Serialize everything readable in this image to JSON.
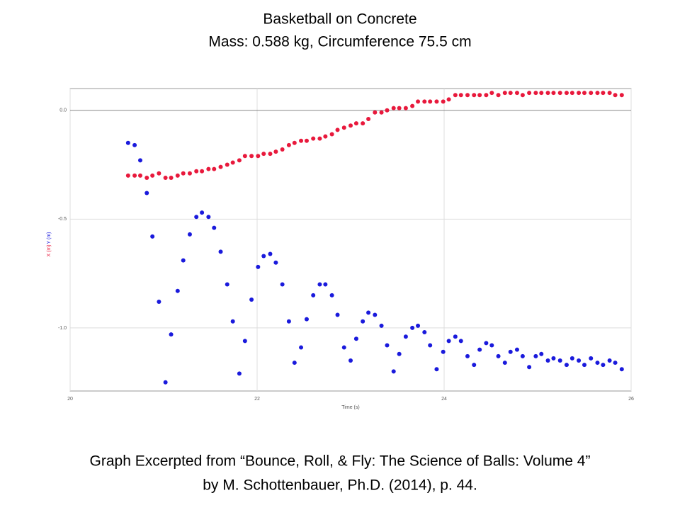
{
  "chart_data": {
    "type": "scatter",
    "title": "Basketball on Concrete",
    "subtitle": "Mass: 0.588 kg, Circumference  75.5 cm",
    "caption": [
      "Graph Excerpted from “Bounce, Roll, & Fly: The Science of  Balls: Volume 4”",
      "by M. Schottenbauer, Ph.D. (2014), p. 44."
    ],
    "x_label": "Time (s)",
    "xlim": [
      20,
      26
    ],
    "xticks": [
      20,
      22,
      24,
      26
    ],
    "ylim": [
      -1.29,
      0.1
    ],
    "yticks": [
      {
        "value": 0,
        "label": "0.0"
      },
      {
        "value": -0.5,
        "label": "-0.5"
      },
      {
        "value": -1,
        "label": "-1.0"
      }
    ],
    "grid": true,
    "x": [
      20.62,
      20.69,
      20.75,
      20.82,
      20.88,
      20.95,
      21.02,
      21.08,
      21.15,
      21.21,
      21.28,
      21.35,
      21.41,
      21.48,
      21.54,
      21.61,
      21.68,
      21.74,
      21.81,
      21.87,
      21.94,
      22.01,
      22.07,
      22.14,
      22.2,
      22.27,
      22.34,
      22.4,
      22.47,
      22.53,
      22.6,
      22.67,
      22.73,
      22.8,
      22.86,
      22.93,
      23.0,
      23.06,
      23.13,
      23.19,
      23.26,
      23.33,
      23.39,
      23.46,
      23.52,
      23.59,
      23.66,
      23.72,
      23.79,
      23.85,
      23.92,
      23.99,
      24.05,
      24.12,
      24.18,
      24.25,
      24.32,
      24.38,
      24.45,
      24.51,
      24.58,
      24.65,
      24.71,
      24.78,
      24.84,
      24.91,
      24.98,
      25.04,
      25.11,
      25.17,
      25.24,
      25.31,
      25.37,
      25.44,
      25.5,
      25.57,
      25.64,
      25.7,
      25.77,
      25.83,
      25.9
    ],
    "series": [
      {
        "name": "X (m)",
        "color": "#e8193c",
        "values": [
          -0.3,
          -0.3,
          -0.3,
          -0.31,
          -0.3,
          -0.29,
          -0.31,
          -0.31,
          -0.3,
          -0.29,
          -0.29,
          -0.28,
          -0.28,
          -0.27,
          -0.27,
          -0.26,
          -0.25,
          -0.24,
          -0.23,
          -0.21,
          -0.21,
          -0.21,
          -0.2,
          -0.2,
          -0.19,
          -0.18,
          -0.16,
          -0.15,
          -0.14,
          -0.14,
          -0.13,
          -0.13,
          -0.12,
          -0.11,
          -0.09,
          -0.08,
          -0.07,
          -0.06,
          -0.06,
          -0.04,
          -0.01,
          -0.01,
          0.0,
          0.01,
          0.01,
          0.01,
          0.02,
          0.04,
          0.04,
          0.04,
          0.04,
          0.04,
          0.05,
          0.07,
          0.07,
          0.07,
          0.07,
          0.07,
          0.07,
          0.08,
          0.07,
          0.08,
          0.08,
          0.08,
          0.07,
          0.08,
          0.08,
          0.08,
          0.08,
          0.08,
          0.08,
          0.08,
          0.08,
          0.08,
          0.08,
          0.08,
          0.08,
          0.08,
          0.08,
          0.07,
          0.07
        ]
      },
      {
        "name": "Y (m)",
        "color": "#1a1adc",
        "values": [
          -0.15,
          -0.16,
          -0.23,
          -0.38,
          -0.58,
          -0.88,
          -1.25,
          -1.03,
          -0.83,
          -0.69,
          -0.57,
          -0.49,
          -0.47,
          -0.49,
          -0.54,
          -0.65,
          -0.8,
          -0.97,
          -1.21,
          -1.06,
          -0.87,
          -0.72,
          -0.67,
          -0.66,
          -0.7,
          -0.8,
          -0.97,
          -1.16,
          -1.09,
          -0.96,
          -0.85,
          -0.8,
          -0.8,
          -0.85,
          -0.94,
          -1.09,
          -1.15,
          -1.05,
          -0.97,
          -0.93,
          -0.94,
          -0.99,
          -1.08,
          -1.2,
          -1.12,
          -1.04,
          -1.0,
          -0.99,
          -1.02,
          -1.08,
          -1.19,
          -1.11,
          -1.06,
          -1.04,
          -1.06,
          -1.13,
          -1.17,
          -1.1,
          -1.07,
          -1.08,
          -1.13,
          -1.16,
          -1.11,
          -1.1,
          -1.13,
          -1.18,
          -1.13,
          -1.12,
          -1.15,
          -1.14,
          -1.15,
          -1.17,
          -1.14,
          -1.15,
          -1.17,
          -1.14,
          -1.16,
          -1.17,
          -1.15,
          -1.16,
          -1.19
        ]
      }
    ]
  }
}
